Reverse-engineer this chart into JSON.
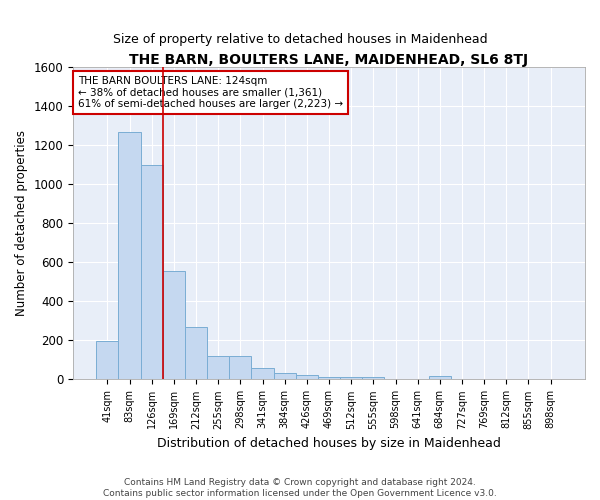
{
  "title": "THE BARN, BOULTERS LANE, MAIDENHEAD, SL6 8TJ",
  "subtitle": "Size of property relative to detached houses in Maidenhead",
  "xlabel": "Distribution of detached houses by size in Maidenhead",
  "ylabel": "Number of detached properties",
  "bar_color": "#c5d8f0",
  "bar_edge_color": "#7aadd4",
  "background_color": "#e8eef8",
  "grid_color": "#ffffff",
  "fig_bg_color": "#ffffff",
  "categories": [
    "41sqm",
    "83sqm",
    "126sqm",
    "169sqm",
    "212sqm",
    "255sqm",
    "298sqm",
    "341sqm",
    "384sqm",
    "426sqm",
    "469sqm",
    "512sqm",
    "555sqm",
    "598sqm",
    "641sqm",
    "684sqm",
    "727sqm",
    "769sqm",
    "812sqm",
    "855sqm",
    "898sqm"
  ],
  "values": [
    198,
    1265,
    1097,
    555,
    268,
    120,
    120,
    58,
    35,
    23,
    15,
    15,
    13,
    0,
    0,
    18,
    0,
    0,
    0,
    0,
    0
  ],
  "ylim": [
    0,
    1600
  ],
  "yticks": [
    0,
    200,
    400,
    600,
    800,
    1000,
    1200,
    1400,
    1600
  ],
  "marker_color": "#cc0000",
  "annotation_line1": "THE BARN BOULTERS LANE: 124sqm",
  "annotation_line2": "← 38% of detached houses are smaller (1,361)",
  "annotation_line3": "61% of semi-detached houses are larger (2,223) →",
  "annotation_box_color": "#ffffff",
  "annotation_border_color": "#cc0000",
  "footer_line1": "Contains HM Land Registry data © Crown copyright and database right 2024.",
  "footer_line2": "Contains public sector information licensed under the Open Government Licence v3.0."
}
